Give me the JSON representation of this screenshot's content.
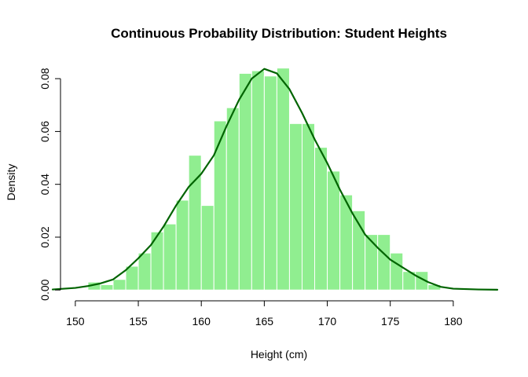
{
  "chart_data": {
    "type": "histogram",
    "title": "Continuous Probability Distribution: Student Heights",
    "xlabel": "Height (cm)",
    "ylabel": "Density",
    "xlim": [
      148.2,
      183.5
    ],
    "ylim": [
      -0.0032,
      0.0845
    ],
    "x_ticks": [
      150,
      155,
      160,
      165,
      170,
      175,
      180
    ],
    "x_tick_labels": [
      "150",
      "155",
      "160",
      "165",
      "170",
      "175",
      "180"
    ],
    "y_ticks": [
      0,
      0.02,
      0.04,
      0.06,
      0.08
    ],
    "y_tick_labels": [
      "0.00",
      "0.02",
      "0.04",
      "0.06",
      "0.08"
    ],
    "grid": false,
    "series": [
      {
        "type": "histogram",
        "bins": [
          {
            "x0": 151,
            "x1": 152,
            "density": 0.003
          },
          {
            "x0": 152,
            "x1": 153,
            "density": 0.002
          },
          {
            "x0": 153,
            "x1": 154,
            "density": 0.004
          },
          {
            "x0": 154,
            "x1": 155,
            "density": 0.009
          },
          {
            "x0": 155,
            "x1": 156,
            "density": 0.014
          },
          {
            "x0": 156,
            "x1": 157,
            "density": 0.022
          },
          {
            "x0": 157,
            "x1": 158,
            "density": 0.025
          },
          {
            "x0": 158,
            "x1": 159,
            "density": 0.034
          },
          {
            "x0": 159,
            "x1": 160,
            "density": 0.051
          },
          {
            "x0": 160,
            "x1": 161,
            "density": 0.032
          },
          {
            "x0": 161,
            "x1": 162,
            "density": 0.064
          },
          {
            "x0": 162,
            "x1": 163,
            "density": 0.069
          },
          {
            "x0": 163,
            "x1": 164,
            "density": 0.082
          },
          {
            "x0": 164,
            "x1": 165,
            "density": 0.083
          },
          {
            "x0": 165,
            "x1": 166,
            "density": 0.081
          },
          {
            "x0": 166,
            "x1": 167,
            "density": 0.084
          },
          {
            "x0": 167,
            "x1": 168,
            "density": 0.063
          },
          {
            "x0": 168,
            "x1": 169,
            "density": 0.063
          },
          {
            "x0": 169,
            "x1": 170,
            "density": 0.054
          },
          {
            "x0": 170,
            "x1": 171,
            "density": 0.045
          },
          {
            "x0": 171,
            "x1": 172,
            "density": 0.036
          },
          {
            "x0": 172,
            "x1": 173,
            "density": 0.03
          },
          {
            "x0": 173,
            "x1": 174,
            "density": 0.021
          },
          {
            "x0": 174,
            "x1": 175,
            "density": 0.021
          },
          {
            "x0": 175,
            "x1": 176,
            "density": 0.014
          },
          {
            "x0": 176,
            "x1": 177,
            "density": 0.007
          },
          {
            "x0": 177,
            "x1": 178,
            "density": 0.007
          },
          {
            "x0": 178,
            "x1": 179,
            "density": 0.002
          }
        ]
      },
      {
        "type": "line",
        "points": [
          [
            148.2,
            0.0002
          ],
          [
            150,
            0.0008
          ],
          [
            151,
            0.0015
          ],
          [
            152,
            0.0025
          ],
          [
            153,
            0.004
          ],
          [
            154,
            0.0075
          ],
          [
            155,
            0.012
          ],
          [
            156,
            0.017
          ],
          [
            157,
            0.024
          ],
          [
            158,
            0.032
          ],
          [
            159,
            0.039
          ],
          [
            160,
            0.044
          ],
          [
            161,
            0.051
          ],
          [
            162,
            0.062
          ],
          [
            163,
            0.072
          ],
          [
            164,
            0.08
          ],
          [
            165,
            0.0837
          ],
          [
            166,
            0.082
          ],
          [
            167,
            0.076
          ],
          [
            168,
            0.067
          ],
          [
            169,
            0.057
          ],
          [
            170,
            0.048
          ],
          [
            171,
            0.038
          ],
          [
            172,
            0.029
          ],
          [
            173,
            0.021
          ],
          [
            174,
            0.016
          ],
          [
            175,
            0.0115
          ],
          [
            176,
            0.0085
          ],
          [
            177,
            0.0055
          ],
          [
            178,
            0.003
          ],
          [
            179,
            0.0012
          ],
          [
            180,
            0.0005
          ],
          [
            182,
            0.0002
          ],
          [
            183.5,
            0.0001
          ]
        ]
      }
    ],
    "colors": {
      "bar_fill": "#90ee90",
      "bar_border": "#ffffff",
      "density_line": "#006400",
      "axis": "#000000"
    }
  }
}
